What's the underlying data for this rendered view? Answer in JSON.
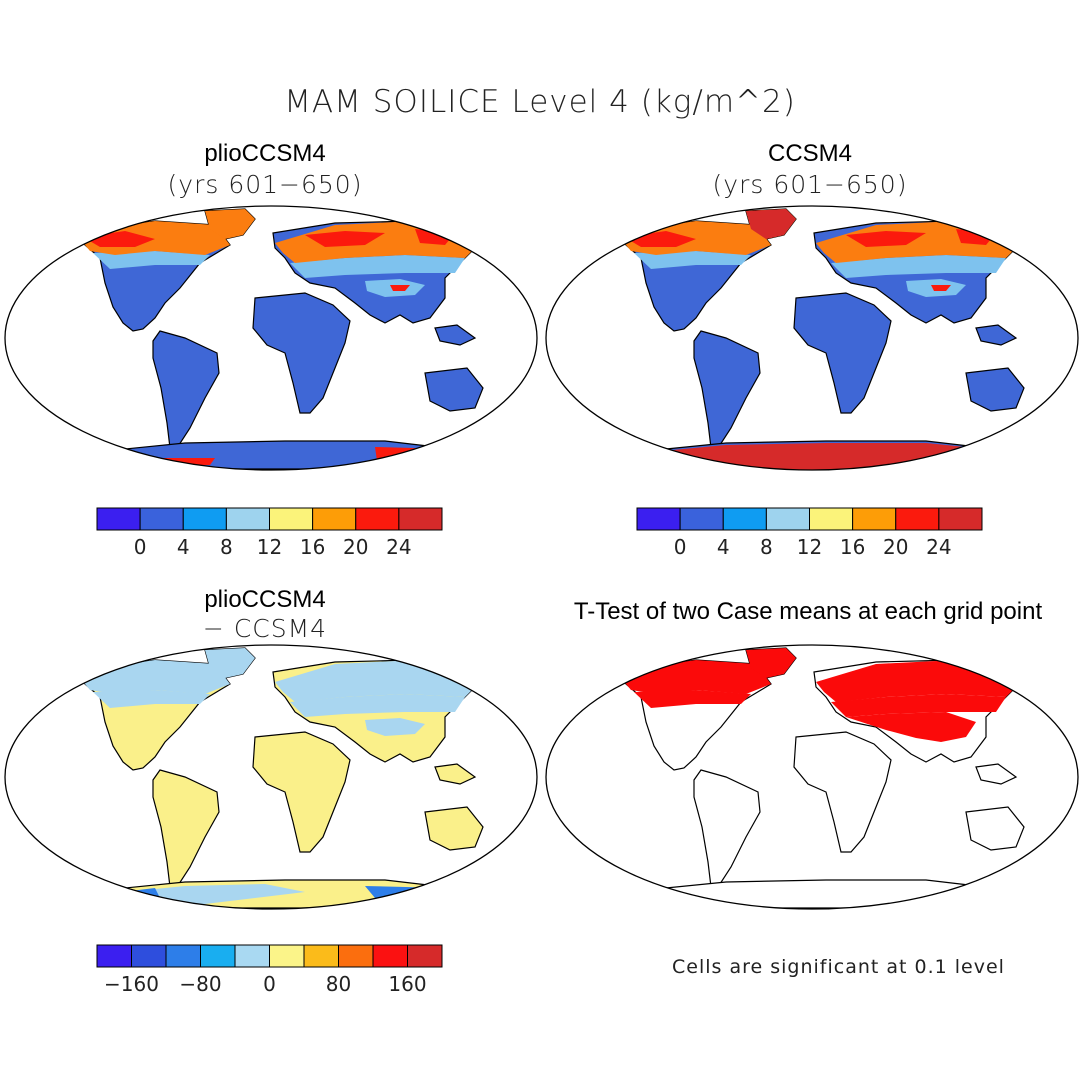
{
  "title": "MAM SOILICE Level 4 (kg/m^2)",
  "panels": {
    "top_left": {
      "title": "plioCCSM4",
      "subtitle": "(yrs 601−650)"
    },
    "top_right": {
      "title": "CCSM4",
      "subtitle": "(yrs 601−650)"
    },
    "bottom_left": {
      "title": "plioCCSM4",
      "subtitle": "− CCSM4"
    },
    "bottom_right": {
      "title": "T-Test of two Case means at each grid point",
      "note": "Cells are significant at 0.1 level"
    }
  },
  "colorbars": {
    "abs": {
      "colors": [
        "#3b1ff0",
        "#3a62dc",
        "#0f9cf2",
        "#9ed3ee",
        "#fbf37a",
        "#fd9d07",
        "#fb1a0d",
        "#d62a2a"
      ],
      "labels": [
        "0",
        "4",
        "8",
        "12",
        "16",
        "20",
        "24"
      ]
    },
    "diff": {
      "colors": [
        "#3b1ff0",
        "#2e4edd",
        "#2d7ee9",
        "#19aef0",
        "#a9d9f2",
        "#fbf489",
        "#fbbb1a",
        "#fb6e0e",
        "#fb1111",
        "#d62a2a"
      ],
      "labels": [
        "−160",
        "−80",
        "0",
        "80",
        "160"
      ]
    }
  },
  "colors": {
    "land_zero": "#3f67d6",
    "diff_zero": "#faf08a",
    "diff_neg": "#a9d6f0",
    "significant": "#fb0a0a"
  }
}
